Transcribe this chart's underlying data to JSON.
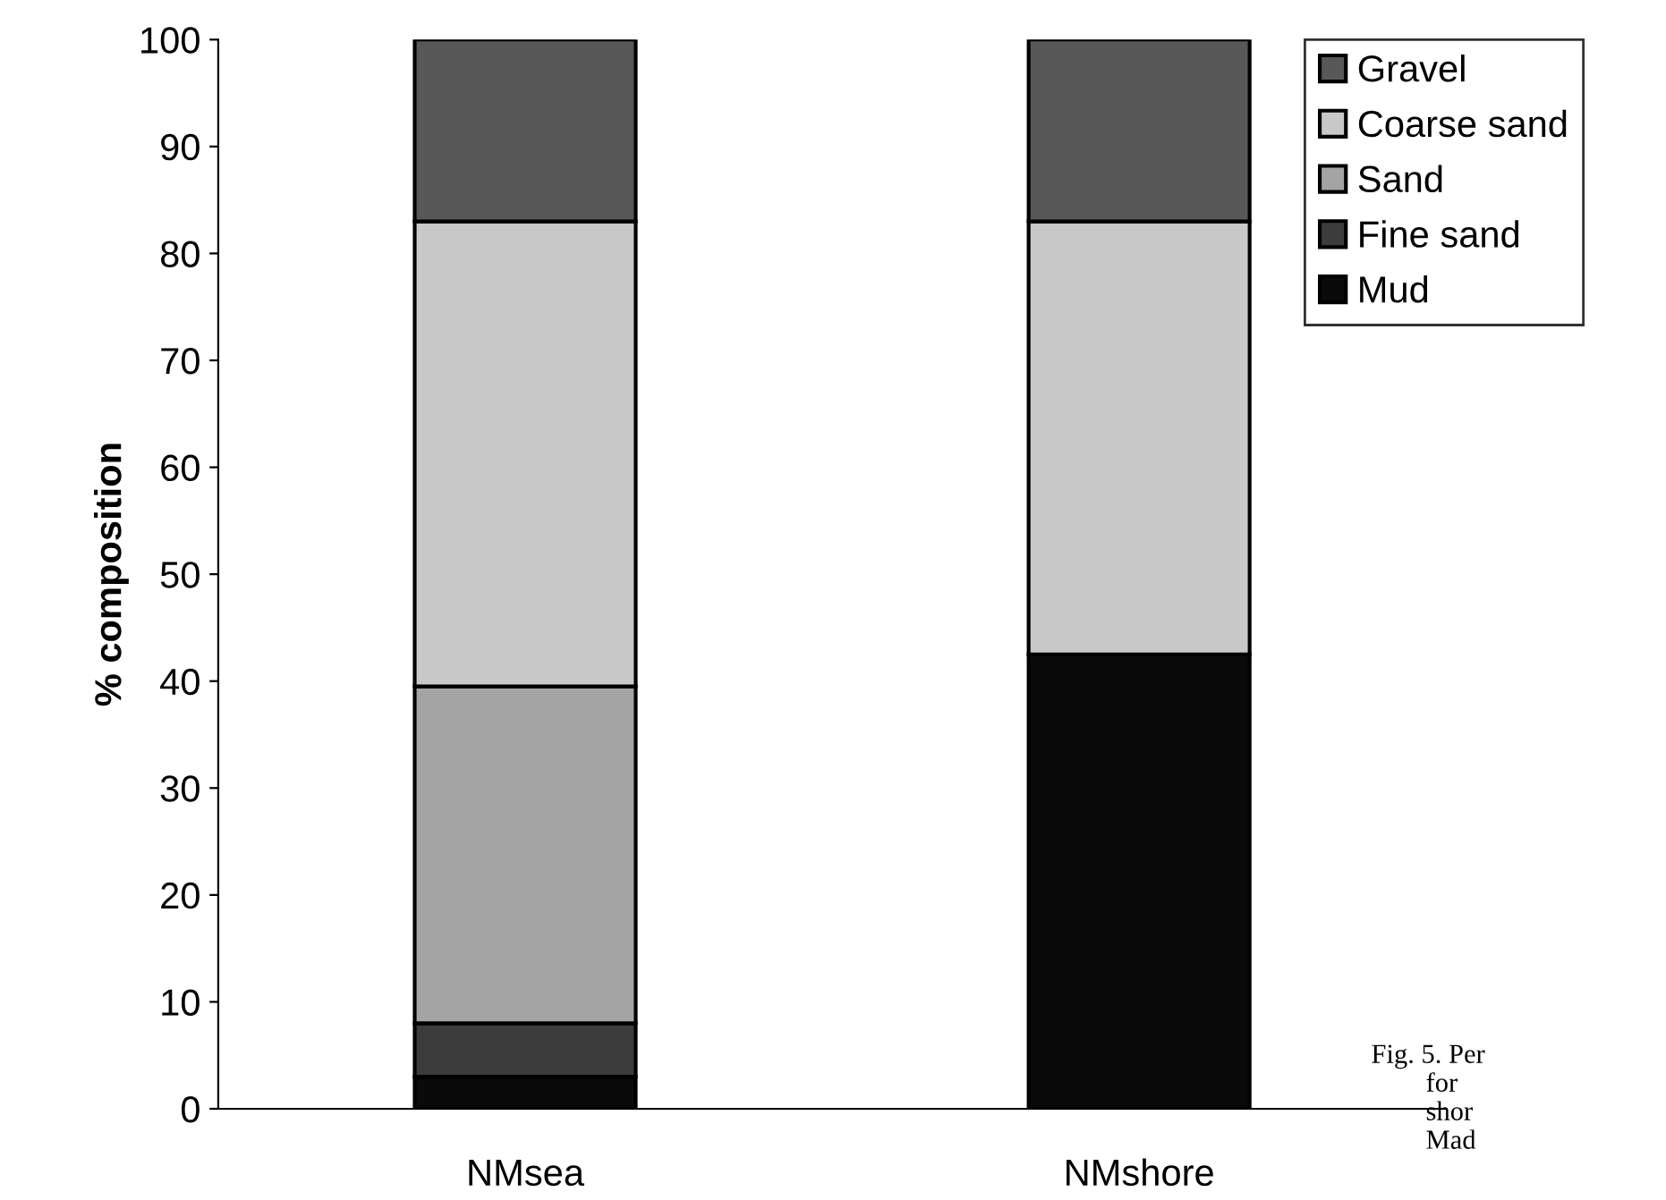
{
  "chart_data": {
    "type": "bar",
    "stacked": true,
    "ylabel": "% composition",
    "categories": [
      "NMsea",
      "NMshore"
    ],
    "series": [
      {
        "name": "Mud",
        "color": "#0a0a0a",
        "values": [
          3,
          42.5
        ]
      },
      {
        "name": "Fine sand",
        "color": "#3c3c3c",
        "values": [
          5,
          0
        ]
      },
      {
        "name": "Sand",
        "color": "#a4a4a4",
        "values": [
          31.5,
          0
        ]
      },
      {
        "name": "Coarse sand",
        "color": "#c8c8c8",
        "values": [
          43.5,
          40.5
        ]
      },
      {
        "name": "Gravel",
        "color": "#585858",
        "values": [
          17,
          17
        ]
      }
    ],
    "ylim": [
      0,
      100
    ],
    "yticks": [
      0,
      10,
      20,
      30,
      40,
      50,
      60,
      70,
      80,
      90,
      100
    ],
    "grid": false,
    "legend": "top right",
    "annotations": [
      "Fig. 5. Per\n        for\n        shor\n        Mad"
    ]
  }
}
